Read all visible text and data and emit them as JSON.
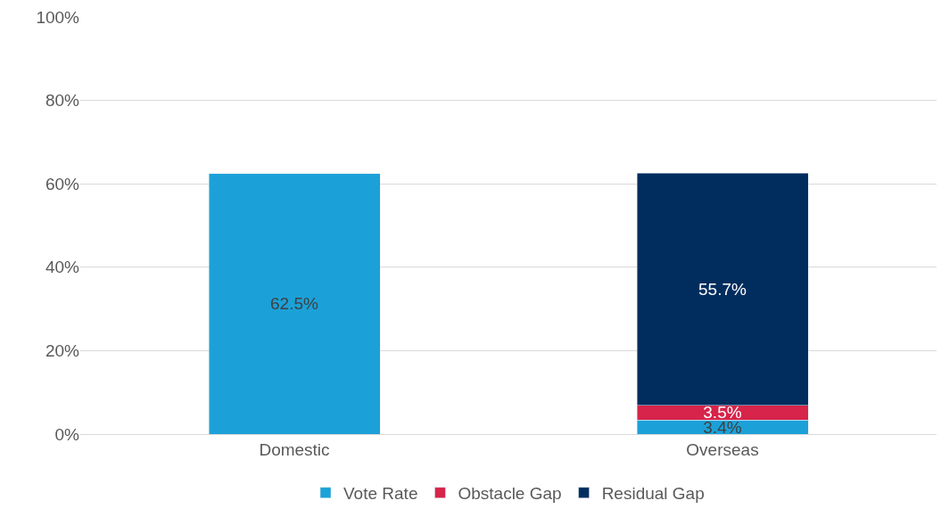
{
  "chart_data": {
    "type": "bar",
    "stacked": true,
    "categories": [
      "Domestic",
      "Overseas"
    ],
    "series": [
      {
        "name": "Vote Rate",
        "color": "#1ba1d8",
        "values": [
          62.5,
          3.4
        ],
        "value_labels": [
          "62.5%",
          "3.4%"
        ]
      },
      {
        "name": "Obstacle Gap",
        "color": "#d6244a",
        "values": [
          null,
          3.5
        ],
        "value_labels": [
          null,
          "3.5%"
        ]
      },
      {
        "name": "Residual Gap",
        "color": "#002d5e",
        "values": [
          null,
          55.7
        ],
        "value_labels": [
          null,
          "55.7%"
        ]
      }
    ],
    "ylim": [
      0,
      100
    ],
    "yticks": [
      {
        "value": 0,
        "label": "0%"
      },
      {
        "value": 20,
        "label": "20%"
      },
      {
        "value": 40,
        "label": "40%"
      },
      {
        "value": 60,
        "label": "60%"
      },
      {
        "value": 80,
        "label": "80%"
      },
      {
        "value": 100,
        "label": "100%"
      }
    ],
    "grid": "y",
    "legend": "bottom"
  }
}
